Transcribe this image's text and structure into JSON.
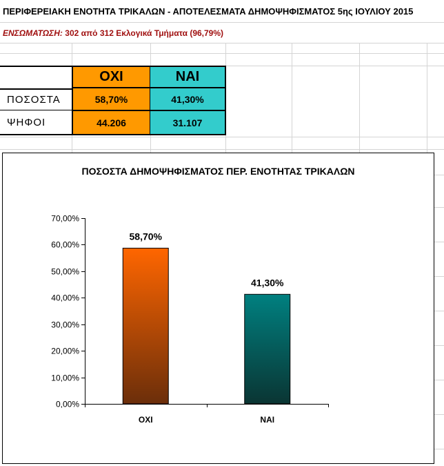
{
  "sheet": {
    "title": "ΠΕΡΙΦΕΡΕΙΑΚΗ ΕΝΟΤΗΤΑ ΤΡΙΚΑΛΩΝ - ΑΠΟΤΕΛΕΣΜΑΤΑ ΔΗΜΟΨΗΦΙΣΜΑΤΟΣ 5ης ΙΟΥΛΙΟΥ 2015",
    "coverage_label": "ΕΝΣΩΜΑΤΩΣΗ:",
    "coverage_text": "302  από 312 Εκλογικά Τμήματα (96,79%)"
  },
  "table": {
    "col_no": "ΟΧΙ",
    "col_yes": "ΝΑΙ",
    "row_pct_label": "ΠΟΣΟΣΤΑ",
    "row_votes_label": "ΨΗΦΟΙ",
    "pct_no": "58,70%",
    "pct_yes": "41,30%",
    "votes_no": "44.206",
    "votes_yes": "31.107",
    "color_no": "#ff9900",
    "color_yes": "#33cccc"
  },
  "chart_data": {
    "type": "bar",
    "title": "ΠΟΣΟΣΤΑ ΔΗΜΟΨΗΦΙΣΜΑΤΟΣ ΠΕΡ. ΕΝΟΤΗΤΑΣ ΤΡΙΚΑΛΩΝ",
    "categories": [
      "ΟΧΙ",
      "ΝΑΙ"
    ],
    "values": [
      58.7,
      41.3
    ],
    "data_labels": [
      "58,70%",
      "41,30%"
    ],
    "y_ticks": [
      "0,00%",
      "10,00%",
      "20,00%",
      "30,00%",
      "40,00%",
      "50,00%",
      "60,00%",
      "70,00%"
    ],
    "ylim": [
      0,
      70
    ],
    "xlabel": "",
    "ylabel": "",
    "grid": false,
    "colors": {
      "no_top": "#ff6600",
      "no_bottom": "#6b2e0a",
      "yes_top": "#008080",
      "yes_bottom": "#0a3533"
    }
  }
}
